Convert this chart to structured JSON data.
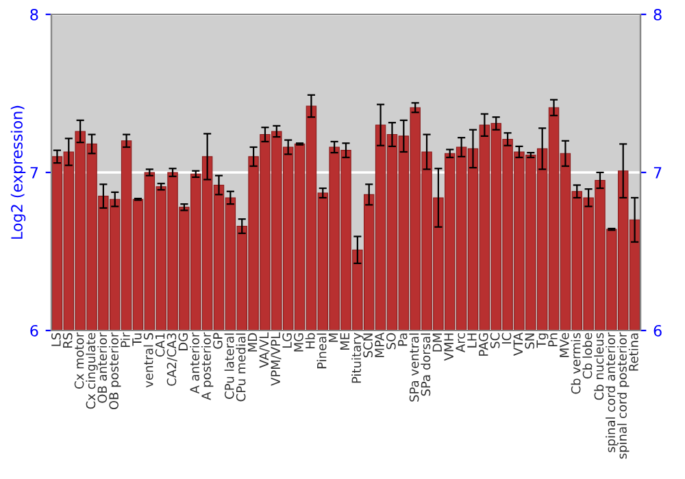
{
  "chart_data": {
    "type": "bar",
    "ylabel": "Log2 (expression)",
    "categories": [
      "LS",
      "RS",
      "Cx motor",
      "Cx cingulate",
      "OB anterior",
      "OB posterior",
      "Pir",
      "Tu",
      "ventral S",
      "CA1",
      "CA2/CA3",
      "DG",
      "A anterior",
      "A posterior",
      "GP",
      "CPu lateral",
      "CPu medial",
      "MD",
      "VA/VL",
      "VPM/VPL",
      "LG",
      "MG",
      "Hb",
      "Pineal",
      "M",
      "ME",
      "Pituitary",
      "SCN",
      "MPA",
      "SO",
      "Pa",
      "SPa ventral",
      "SPa dorsal",
      "DM",
      "VMH",
      "Arc",
      "LH",
      "PAG",
      "SC",
      "IC",
      "VTA",
      "SN",
      "Tg",
      "Pn",
      "MVe",
      "Cb vermis",
      "Cb lobe",
      "Cb nucleus",
      "spinal cord anterior",
      "spinal cord posterior",
      "Retina"
    ],
    "values": [
      7.1,
      7.13,
      7.26,
      7.18,
      6.85,
      6.83,
      7.2,
      6.83,
      7.0,
      6.91,
      7.0,
      6.78,
      6.99,
      7.1,
      6.92,
      6.84,
      6.66,
      7.1,
      7.24,
      7.26,
      7.16,
      7.18,
      7.42,
      6.87,
      7.16,
      7.14,
      6.51,
      6.86,
      7.3,
      7.24,
      7.23,
      7.41,
      7.13,
      6.84,
      7.12,
      7.16,
      7.15,
      7.3,
      7.31,
      7.21,
      7.13,
      7.11,
      7.15,
      7.41,
      7.12,
      6.88,
      6.84,
      6.95,
      6.64,
      7.01,
      6.7
    ],
    "errors": [
      0.04,
      0.085,
      0.07,
      0.06,
      0.075,
      0.045,
      0.04,
      0.005,
      0.02,
      0.02,
      0.025,
      0.02,
      0.02,
      0.145,
      0.06,
      0.04,
      0.045,
      0.06,
      0.045,
      0.035,
      0.045,
      0.005,
      0.07,
      0.03,
      0.035,
      0.045,
      0.085,
      0.065,
      0.13,
      0.075,
      0.1,
      0.03,
      0.11,
      0.185,
      0.025,
      0.06,
      0.12,
      0.07,
      0.04,
      0.04,
      0.035,
      0.015,
      0.13,
      0.05,
      0.08,
      0.04,
      0.055,
      0.05,
      0.005,
      0.17,
      0.14
    ],
    "color": "#b83030",
    "ylim": [
      6,
      8
    ],
    "yticks": [
      6,
      7,
      8
    ],
    "y2lim": [
      6,
      8
    ],
    "y2ticks": [
      6,
      7,
      8
    ],
    "grid": "y"
  }
}
